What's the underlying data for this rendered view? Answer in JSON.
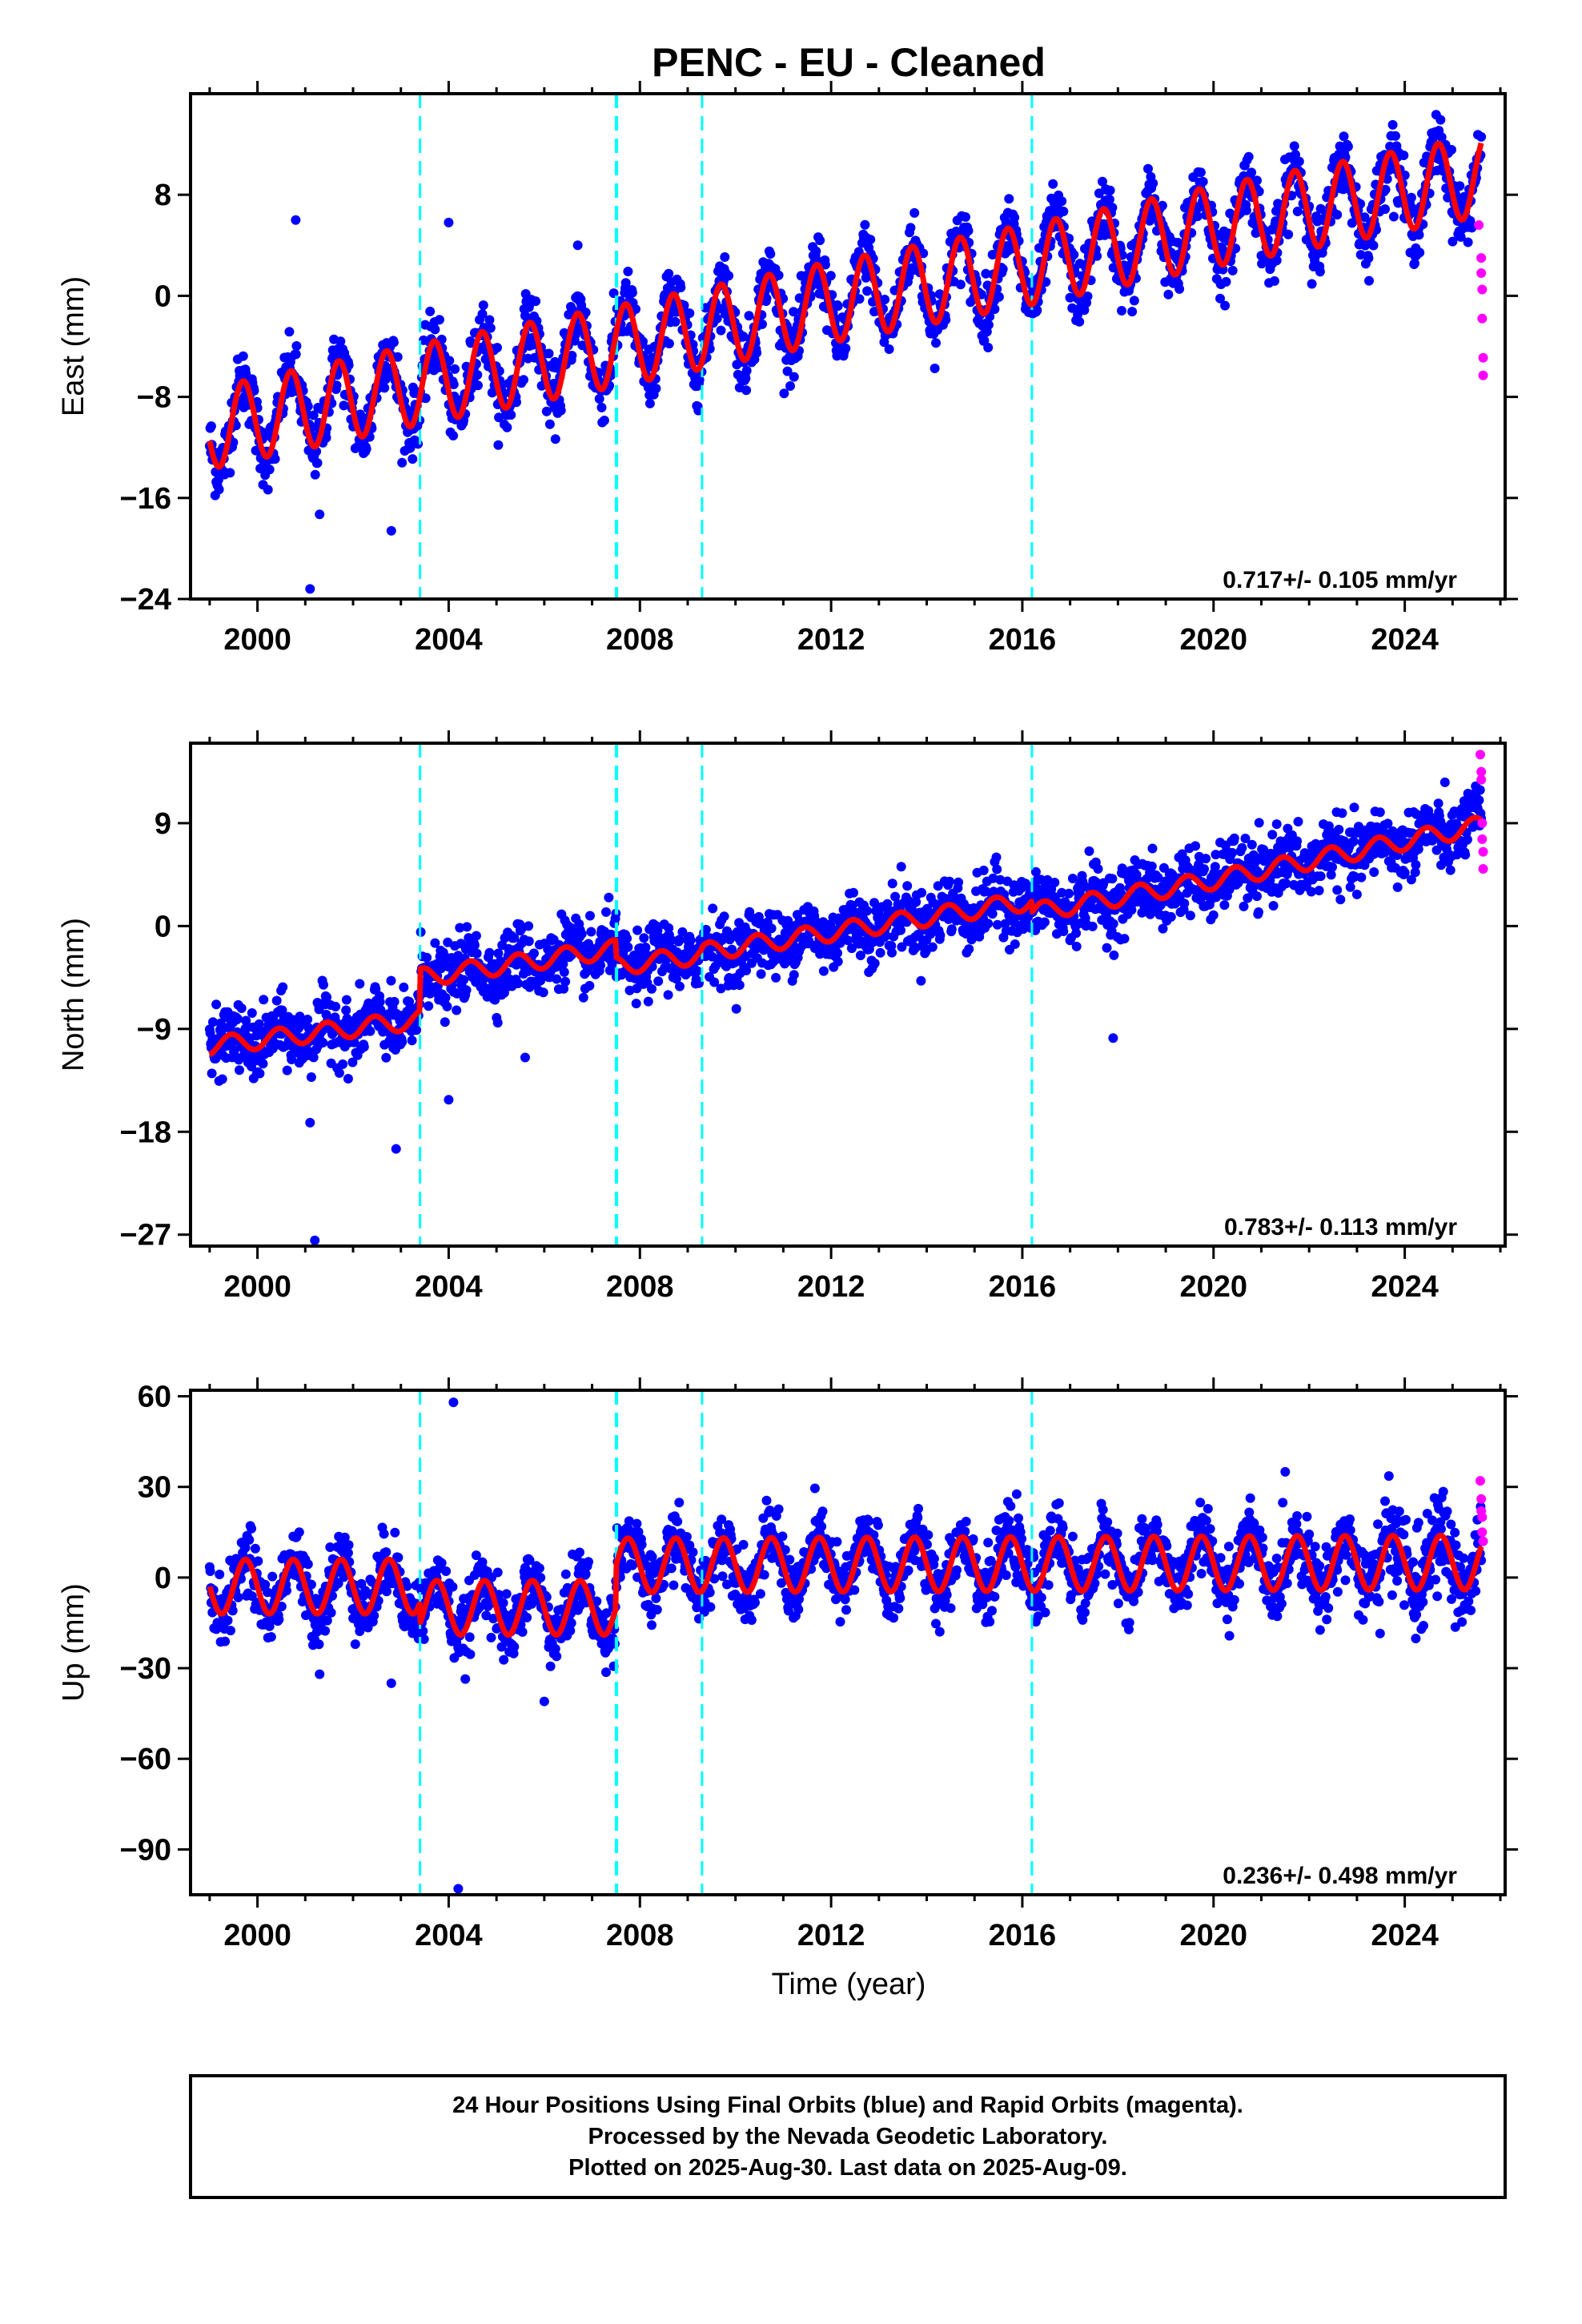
{
  "title": "PENC  - EU - Cleaned",
  "x_axis_label": "Time (year)",
  "x_tick_labels": [
    "2000",
    "2004",
    "2008",
    "2012",
    "2016",
    "2020",
    "2024"
  ],
  "colors": {
    "final_orbits": "#0000ff",
    "rapid_orbits": "#ff00ff",
    "model_fit": "#ff0000",
    "offset_lines": "#00ffff"
  },
  "footer": {
    "line1": "24 Hour Positions Using Final Orbits (blue) and Rapid Orbits (magenta).",
    "line2": "Processed by the Nevada Geodetic Laboratory.",
    "line3": "Plotted on 2025-Aug-30. Last data on 2025-Aug-09."
  },
  "chart_data": [
    {
      "type": "scatter",
      "component": "east",
      "ylabel": "East (mm)",
      "xlim": [
        1998.6,
        2026.1
      ],
      "ylim": [
        -24,
        16
      ],
      "yticks": [
        -24,
        -16,
        -8,
        0,
        8
      ],
      "xticks": [
        2000,
        2004,
        2008,
        2012,
        2016,
        2020,
        2024
      ],
      "rate_label": "0.717+/- 0.105 mm/yr",
      "offset_epochs": [
        2003.4,
        2007.5,
        2007.52,
        2009.3,
        2016.2
      ],
      "fit_model": {
        "start_year": 1999.0,
        "end_year": 2025.6,
        "rate": 0.717,
        "annual_amplitude": 3.2,
        "annual_phase_years": 0.45,
        "series_start_value": -12.0,
        "mid_series_trend_points": [
          [
            1999.0,
            -10.5
          ],
          [
            2003.4,
            -7.0
          ],
          [
            2007.5,
            -4.0
          ],
          [
            2012.0,
            -0.5
          ],
          [
            2016.2,
            2.5
          ],
          [
            2020.0,
            5.5
          ],
          [
            2025.6,
            9.5
          ]
        ]
      },
      "final_orbits_sample": [
        [
          2000.8,
          6.0
        ],
        [
          2001.1,
          -23.2
        ],
        [
          2002.8,
          -18.6
        ],
        [
          2004.0,
          5.8
        ],
        [
          2006.7,
          4.0
        ],
        [
          2001.3,
          -17.3
        ]
      ],
      "rapid_orbits": [
        [
          2025.55,
          5.6
        ],
        [
          2025.6,
          3.0
        ],
        [
          2025.6,
          1.8
        ],
        [
          2025.62,
          0.5
        ],
        [
          2025.62,
          -1.8
        ],
        [
          2025.64,
          -4.9
        ],
        [
          2025.64,
          -6.3
        ]
      ]
    },
    {
      "type": "scatter",
      "component": "north",
      "ylabel": "North (mm)",
      "xlim": [
        1998.6,
        2026.1
      ],
      "ylim": [
        -28,
        16
      ],
      "yticks": [
        -27,
        -18,
        -9,
        0,
        9
      ],
      "xticks": [
        2000,
        2004,
        2008,
        2012,
        2016,
        2020,
        2024
      ],
      "rate_label": "0.783+/- 0.113 mm/yr",
      "offset_epochs": [
        2003.4,
        2007.5,
        2007.52,
        2009.3,
        2016.2
      ],
      "fit_model": {
        "start_year": 1999.0,
        "end_year": 2025.6,
        "annual_amplitude": 0.8,
        "annual_phase_years": 0.2,
        "trend_points": [
          [
            1999.0,
            -10.5
          ],
          [
            2003.39,
            -8.2
          ],
          [
            2003.41,
            -4.5
          ],
          [
            2007.49,
            -2.0
          ],
          [
            2007.51,
            -3.5
          ],
          [
            2009.29,
            -2.5
          ],
          [
            2009.31,
            -2.3
          ],
          [
            2016.19,
            2.2
          ],
          [
            2016.21,
            1.2
          ],
          [
            2020.0,
            4.0
          ],
          [
            2025.6,
            8.8
          ]
        ]
      },
      "final_orbits_sample": [
        [
          2001.2,
          -27.5
        ],
        [
          2002.9,
          -19.5
        ],
        [
          2004.0,
          -15.2
        ],
        [
          2005.6,
          -11.5
        ],
        [
          2017.9,
          -9.8
        ],
        [
          2001.1,
          -17.2
        ]
      ],
      "rapid_orbits": [
        [
          2025.58,
          15.0
        ],
        [
          2025.6,
          13.5
        ],
        [
          2025.6,
          12.8
        ],
        [
          2025.62,
          9.0
        ],
        [
          2025.62,
          7.6
        ],
        [
          2025.64,
          6.5
        ],
        [
          2025.64,
          5.0
        ]
      ]
    },
    {
      "type": "scatter",
      "component": "up",
      "ylabel": "Up (mm)",
      "xlim": [
        1998.6,
        2026.1
      ],
      "ylim": [
        -105,
        62
      ],
      "yticks": [
        -90,
        -60,
        -30,
        0,
        30,
        60
      ],
      "xticks": [
        2000,
        2004,
        2008,
        2012,
        2016,
        2020,
        2024
      ],
      "rate_label": "0.236+/- 0.498 mm/yr",
      "offset_epochs": [
        2003.4,
        2007.5,
        2007.52,
        2009.3,
        2016.2
      ],
      "fit_model": {
        "start_year": 1999.0,
        "end_year": 2025.6,
        "annual_amplitude": 9.0,
        "annual_phase_years": 0.5,
        "trend_points": [
          [
            1999.0,
            -3.0
          ],
          [
            2003.39,
            -3.0
          ],
          [
            2003.41,
            -10.0
          ],
          [
            2007.49,
            -10.0
          ],
          [
            2007.51,
            4.0
          ],
          [
            2025.6,
            5.0
          ]
        ]
      },
      "final_orbits_sample": [
        [
          2004.1,
          58.0
        ],
        [
          2004.2,
          -103.0
        ],
        [
          2006.0,
          -41.0
        ],
        [
          2002.8,
          -35.0
        ],
        [
          2001.3,
          -32.0
        ],
        [
          2021.5,
          35.0
        ]
      ],
      "rapid_orbits": [
        [
          2025.58,
          32.0
        ],
        [
          2025.6,
          26.0
        ],
        [
          2025.6,
          22.0
        ],
        [
          2025.62,
          20.0
        ],
        [
          2025.62,
          15.0
        ],
        [
          2025.64,
          12.0
        ]
      ]
    }
  ]
}
